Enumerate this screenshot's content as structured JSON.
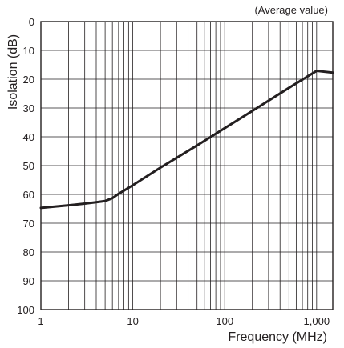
{
  "chart_data": {
    "type": "line",
    "annotation": "(Average value)",
    "xlabel": "Frequency (MHz)",
    "ylabel": "Isolation (dB)",
    "x_scale": "log",
    "xlim": [
      1,
      1500
    ],
    "ylim": [
      0,
      100
    ],
    "y_inverted": true,
    "grid": true,
    "x_ticks": [
      1,
      10,
      100,
      1000
    ],
    "x_tick_labels": [
      "1",
      "10",
      "100",
      "1,000"
    ],
    "y_ticks": [
      0,
      10,
      20,
      30,
      40,
      50,
      60,
      70,
      80,
      90,
      100
    ],
    "y_tick_labels": [
      "0",
      "10",
      "20",
      "30",
      "40",
      "50",
      "60",
      "70",
      "80",
      "90",
      "100"
    ],
    "series": [
      {
        "x": [
          1,
          2,
          3,
          4,
          5,
          6,
          7,
          8,
          10,
          20,
          50,
          100,
          200,
          500,
          1000,
          1500
        ],
        "y": [
          64.7,
          63.8,
          63.2,
          62.7,
          62.3,
          61.3,
          59.8,
          58.7,
          56.8,
          50.7,
          43.0,
          37.0,
          31.0,
          23.0,
          17.1,
          17.7
        ],
        "color": "#231f20"
      }
    ]
  }
}
